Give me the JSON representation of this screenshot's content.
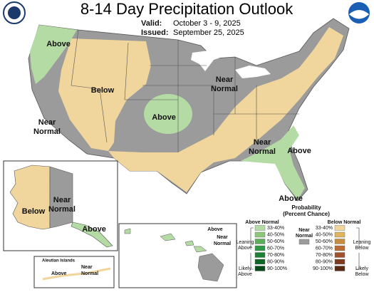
{
  "header": {
    "title": "8-14 Day Precipitation Outlook",
    "valid_label": "Valid:",
    "valid": "October 3 - 9, 2025",
    "issued_label": "Issued:",
    "issued": "September 25, 2025"
  },
  "conus_labels": [
    "Above",
    "Below",
    "Near",
    "Normal",
    "Above",
    "Near",
    "Normal",
    "Near",
    "Normal",
    "Above",
    "Above"
  ],
  "alaska_labels": [
    "Below",
    "Near",
    "Normal",
    "Above"
  ],
  "aleutian": {
    "title": "Aleutian Islands",
    "labels": [
      "Above",
      "Near",
      "Normal"
    ]
  },
  "hawaii_labels": [
    "Above",
    "Near",
    "Normal"
  ],
  "legend": {
    "title": [
      "Probability",
      "(Percent Chance)"
    ],
    "above": {
      "heading": "Above Normal",
      "leaning": [
        "Leaning",
        "Above"
      ],
      "likely": [
        "Likely",
        "Above"
      ],
      "ranges": [
        {
          "label": "33-40%",
          "color": "#b5dba5"
        },
        {
          "label": "40-50%",
          "color": "#8cc67a"
        },
        {
          "label": "50-60%",
          "color": "#5dae5c"
        },
        {
          "label": "60-70%",
          "color": "#2f9a46"
        },
        {
          "label": "70-80%",
          "color": "#1f7f34"
        },
        {
          "label": "80-90%",
          "color": "#0f6426"
        },
        {
          "label": "90-100%",
          "color": "#084a1a"
        }
      ]
    },
    "near": {
      "heading": [
        "Near",
        "Normal"
      ],
      "color": "#9b9b9b"
    },
    "below": {
      "heading": "Below Normal",
      "leaning": [
        "Leaning",
        "Below"
      ],
      "likely": [
        "Likely",
        "Below"
      ],
      "ranges": [
        {
          "label": "33-40%",
          "color": "#f0d59c"
        },
        {
          "label": "40-50%",
          "color": "#deb45e"
        },
        {
          "label": "50-60%",
          "color": "#c98d40"
        },
        {
          "label": "60-70%",
          "color": "#b76d34"
        },
        {
          "label": "70-80%",
          "color": "#a0522d"
        },
        {
          "label": "80-90%",
          "color": "#7d3b1f"
        },
        {
          "label": "90-100%",
          "color": "#5a2a14"
        }
      ]
    }
  }
}
